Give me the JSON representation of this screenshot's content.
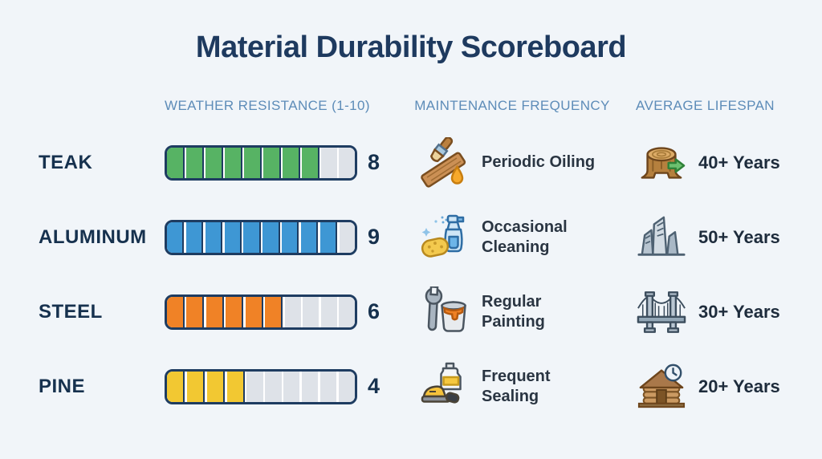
{
  "title": "Material Durability Scoreboard",
  "columns": {
    "weather": "WEATHER RESISTANCE (1-10)",
    "maintenance": "MAINTENANCE FREQUENCY",
    "lifespan": "AVERAGE LIFESPAN"
  },
  "scale": {
    "min": 1,
    "max": 10,
    "segments": 10
  },
  "colors": {
    "background": "#f1f5f9",
    "title": "#1e3a5f",
    "column_header": "#5d8cb8",
    "bar_border": "#1e3c61",
    "bar_empty": "#dee2e8",
    "teak_green": "#57b364",
    "aluminum_blue": "#3e97d4",
    "steel_orange": "#f08226",
    "pine_yellow": "#f2c832"
  },
  "rows": [
    {
      "material": "TEAK",
      "score": 8,
      "bar_color": "#57b364",
      "maintenance": "Periodic Oiling",
      "maintenance_icon": "paintbrush-oiling-icon",
      "lifespan": "40+ Years",
      "lifespan_icon": "tree-stump-icon"
    },
    {
      "material": "ALUMINUM",
      "score": 9,
      "bar_color": "#3e97d4",
      "maintenance": "Occasional\nCleaning",
      "maintenance_icon": "sponge-spray-cleaning-icon",
      "lifespan": "50+ Years",
      "lifespan_icon": "modern-building-icon"
    },
    {
      "material": "STEEL",
      "score": 6,
      "bar_color": "#f08226",
      "maintenance": "Regular\nPainting",
      "maintenance_icon": "wrench-paint-can-icon",
      "lifespan": "30+ Years",
      "lifespan_icon": "bridge-icon"
    },
    {
      "material": "PINE",
      "score": 4,
      "bar_color": "#f2c832",
      "maintenance": "Frequent\nSealing",
      "maintenance_icon": "sealant-sander-icon",
      "lifespan": "20+ Years",
      "lifespan_icon": "log-cabin-clock-icon"
    }
  ],
  "chart_data": {
    "type": "bar",
    "orientation": "horizontal",
    "title": "Material Durability Scoreboard",
    "categories": [
      "TEAK",
      "ALUMINUM",
      "STEEL",
      "PINE"
    ],
    "series": [
      {
        "name": "WEATHER RESISTANCE (1-10)",
        "values": [
          8,
          9,
          6,
          4
        ]
      }
    ],
    "xlim": [
      0,
      10
    ],
    "bar_colors": [
      "#57b364",
      "#3e97d4",
      "#f08226",
      "#f2c832"
    ],
    "data_labels": [
      8,
      9,
      6,
      4
    ],
    "annotations": {
      "maintenance_frequency": [
        "Periodic Oiling",
        "Occasional Cleaning",
        "Regular Painting",
        "Frequent Sealing"
      ],
      "average_lifespan": [
        "40+ Years",
        "50+ Years",
        "30+ Years",
        "20+ Years"
      ]
    }
  }
}
